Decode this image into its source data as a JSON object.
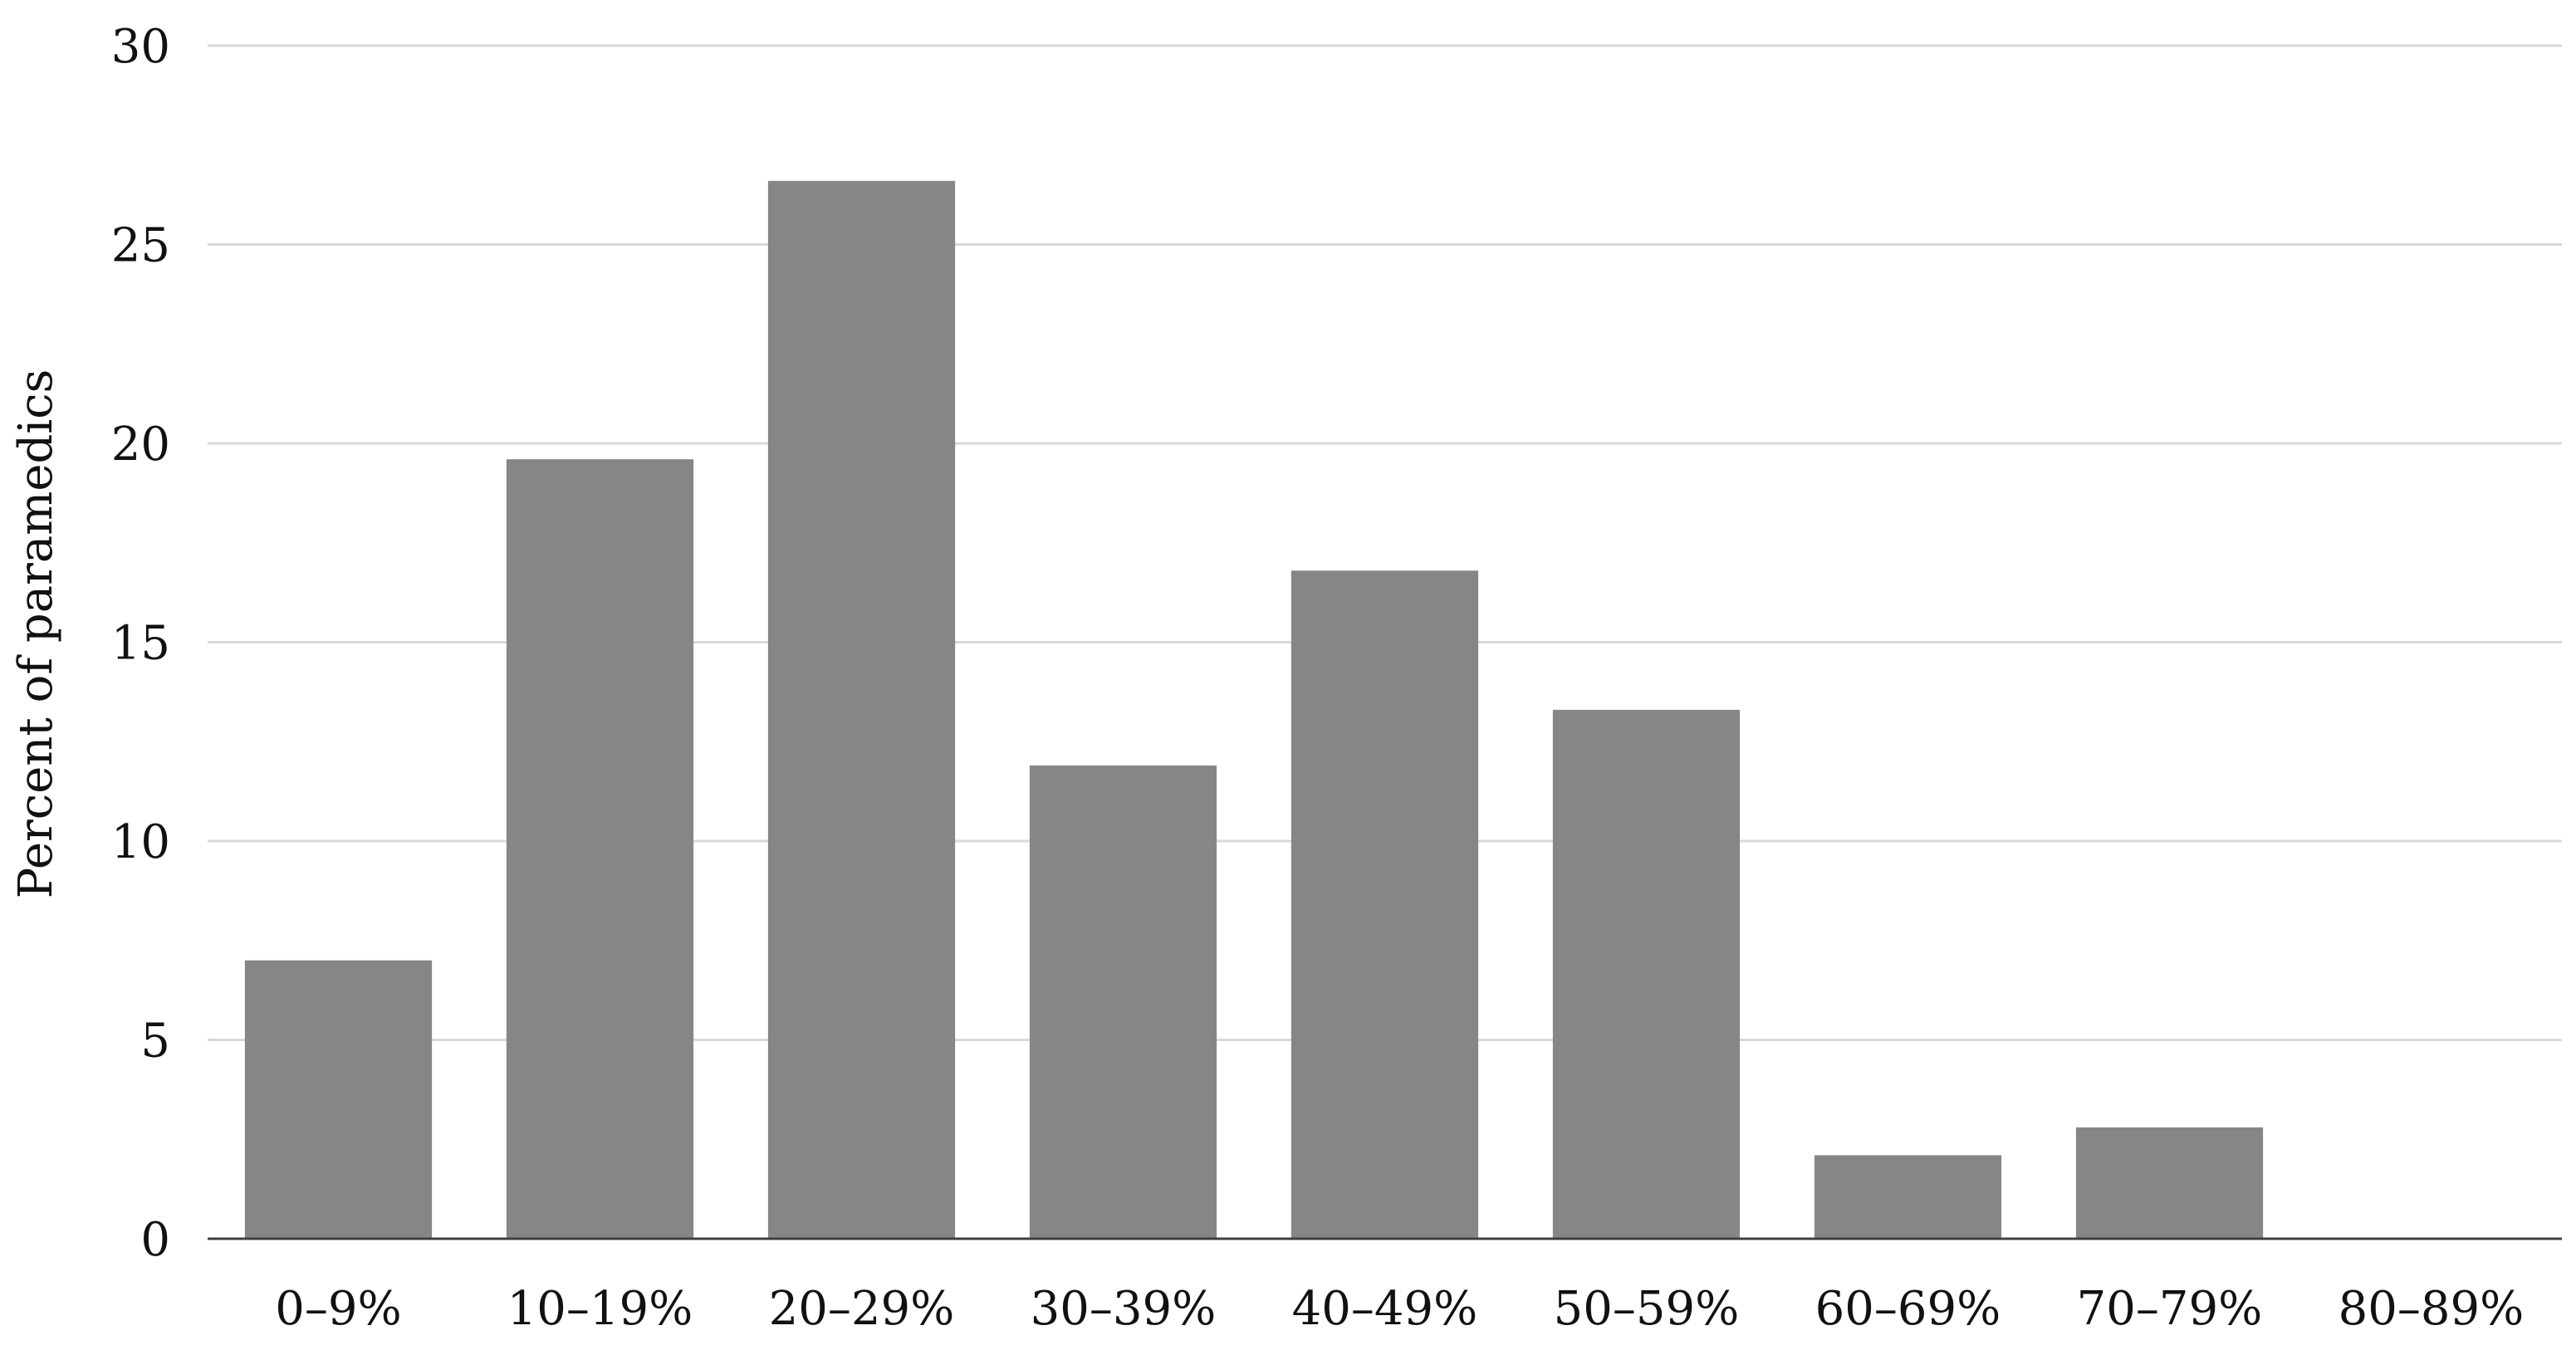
{
  "chart_data": {
    "type": "bar",
    "title": "",
    "xlabel": "",
    "ylabel": "Percent of paramedics",
    "categories": [
      "0–9%",
      "10–19%",
      "20–29%",
      "30–39%",
      "40–49%",
      "50–59%",
      "60–69%",
      "70–79%",
      "80–89%"
    ],
    "values": [
      7.0,
      19.6,
      26.6,
      11.9,
      16.8,
      13.3,
      2.1,
      2.8,
      0
    ],
    "ylim": [
      0,
      30
    ],
    "yticks": [
      "0",
      "5",
      "10",
      "15",
      "20",
      "25",
      "30"
    ],
    "grid": true,
    "legend": "none",
    "bar_color": "#868686"
  }
}
